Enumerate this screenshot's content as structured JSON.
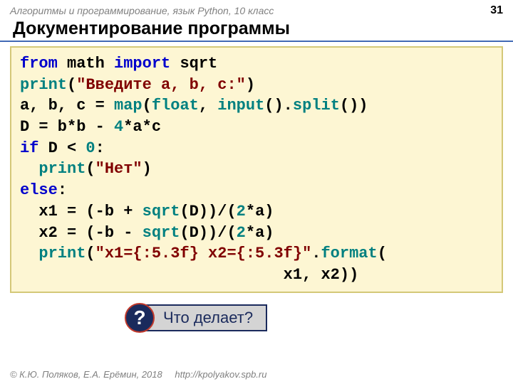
{
  "header": {
    "breadcrumb": "Алгоритмы и программирование, язык Python, 10 класс",
    "page_number": "31"
  },
  "title": "Документирование программы",
  "code": {
    "tokens": [
      [
        {
          "t": "from",
          "c": "kw-blue"
        },
        {
          "t": " math ",
          "c": "txt-black"
        },
        {
          "t": "import",
          "c": "kw-blue"
        },
        {
          "t": " sqrt",
          "c": "txt-black"
        }
      ],
      [
        {
          "t": "print",
          "c": "kw-teal"
        },
        {
          "t": "(",
          "c": "txt-black"
        },
        {
          "t": "\"Введите a, b, c:\"",
          "c": "txt-maroon"
        },
        {
          "t": ")",
          "c": "txt-black"
        }
      ],
      [
        {
          "t": "a, b, c = ",
          "c": "txt-black"
        },
        {
          "t": "map",
          "c": "kw-teal"
        },
        {
          "t": "(",
          "c": "txt-black"
        },
        {
          "t": "float",
          "c": "kw-teal"
        },
        {
          "t": ", ",
          "c": "txt-black"
        },
        {
          "t": "input",
          "c": "kw-teal"
        },
        {
          "t": "().",
          "c": "txt-black"
        },
        {
          "t": "split",
          "c": "kw-teal"
        },
        {
          "t": "())",
          "c": "txt-black"
        }
      ],
      [
        {
          "t": "D = b*b - ",
          "c": "txt-black"
        },
        {
          "t": "4",
          "c": "kw-teal"
        },
        {
          "t": "*a*c",
          "c": "txt-black"
        }
      ],
      [
        {
          "t": "if",
          "c": "kw-blue"
        },
        {
          "t": " D < ",
          "c": "txt-black"
        },
        {
          "t": "0",
          "c": "kw-teal"
        },
        {
          "t": ":",
          "c": "txt-black"
        }
      ],
      [
        {
          "t": "  ",
          "c": "txt-black"
        },
        {
          "t": "print",
          "c": "kw-teal"
        },
        {
          "t": "(",
          "c": "txt-black"
        },
        {
          "t": "\"Нет\"",
          "c": "txt-maroon"
        },
        {
          "t": ")",
          "c": "txt-black"
        }
      ],
      [
        {
          "t": "else",
          "c": "kw-blue"
        },
        {
          "t": ":",
          "c": "txt-black"
        }
      ],
      [
        {
          "t": "  x1 = (-b + ",
          "c": "txt-black"
        },
        {
          "t": "sqrt",
          "c": "kw-teal"
        },
        {
          "t": "(D))/(",
          "c": "txt-black"
        },
        {
          "t": "2",
          "c": "kw-teal"
        },
        {
          "t": "*a)",
          "c": "txt-black"
        }
      ],
      [
        {
          "t": "  x2 = (-b - ",
          "c": "txt-black"
        },
        {
          "t": "sqrt",
          "c": "kw-teal"
        },
        {
          "t": "(D))/(",
          "c": "txt-black"
        },
        {
          "t": "2",
          "c": "kw-teal"
        },
        {
          "t": "*a)",
          "c": "txt-black"
        }
      ],
      [
        {
          "t": "  ",
          "c": "txt-black"
        },
        {
          "t": "print",
          "c": "kw-teal"
        },
        {
          "t": "(",
          "c": "txt-black"
        },
        {
          "t": "\"x1={:5.3f} x2={:5.3f}\"",
          "c": "txt-maroon"
        },
        {
          "t": ".",
          "c": "txt-black"
        },
        {
          "t": "format",
          "c": "kw-teal"
        },
        {
          "t": "(",
          "c": "txt-black"
        }
      ],
      [
        {
          "t": "                            x1, x2))",
          "c": "txt-black"
        }
      ]
    ],
    "background_color": "#fdf6d3",
    "border_color": "#d4c878",
    "font_family": "Courier New",
    "font_size": 22
  },
  "question": {
    "badge": "?",
    "text": "Что делает?",
    "badge_bg": "#1a2a5c",
    "badge_border": "#c0392b",
    "box_bg": "#d4d4d4",
    "box_border": "#1a2a5c"
  },
  "footer": {
    "copyright": "© К.Ю. Поляков, Е.А. Ерёмин, 2018",
    "url": "http://kpolyakov.spb.ru"
  },
  "colors": {
    "keyword_blue": "#0000cc",
    "builtin_teal": "#008080",
    "string_maroon": "#800000",
    "text_black": "#000000",
    "title_underline": "#4169b5",
    "muted": "#808080"
  }
}
